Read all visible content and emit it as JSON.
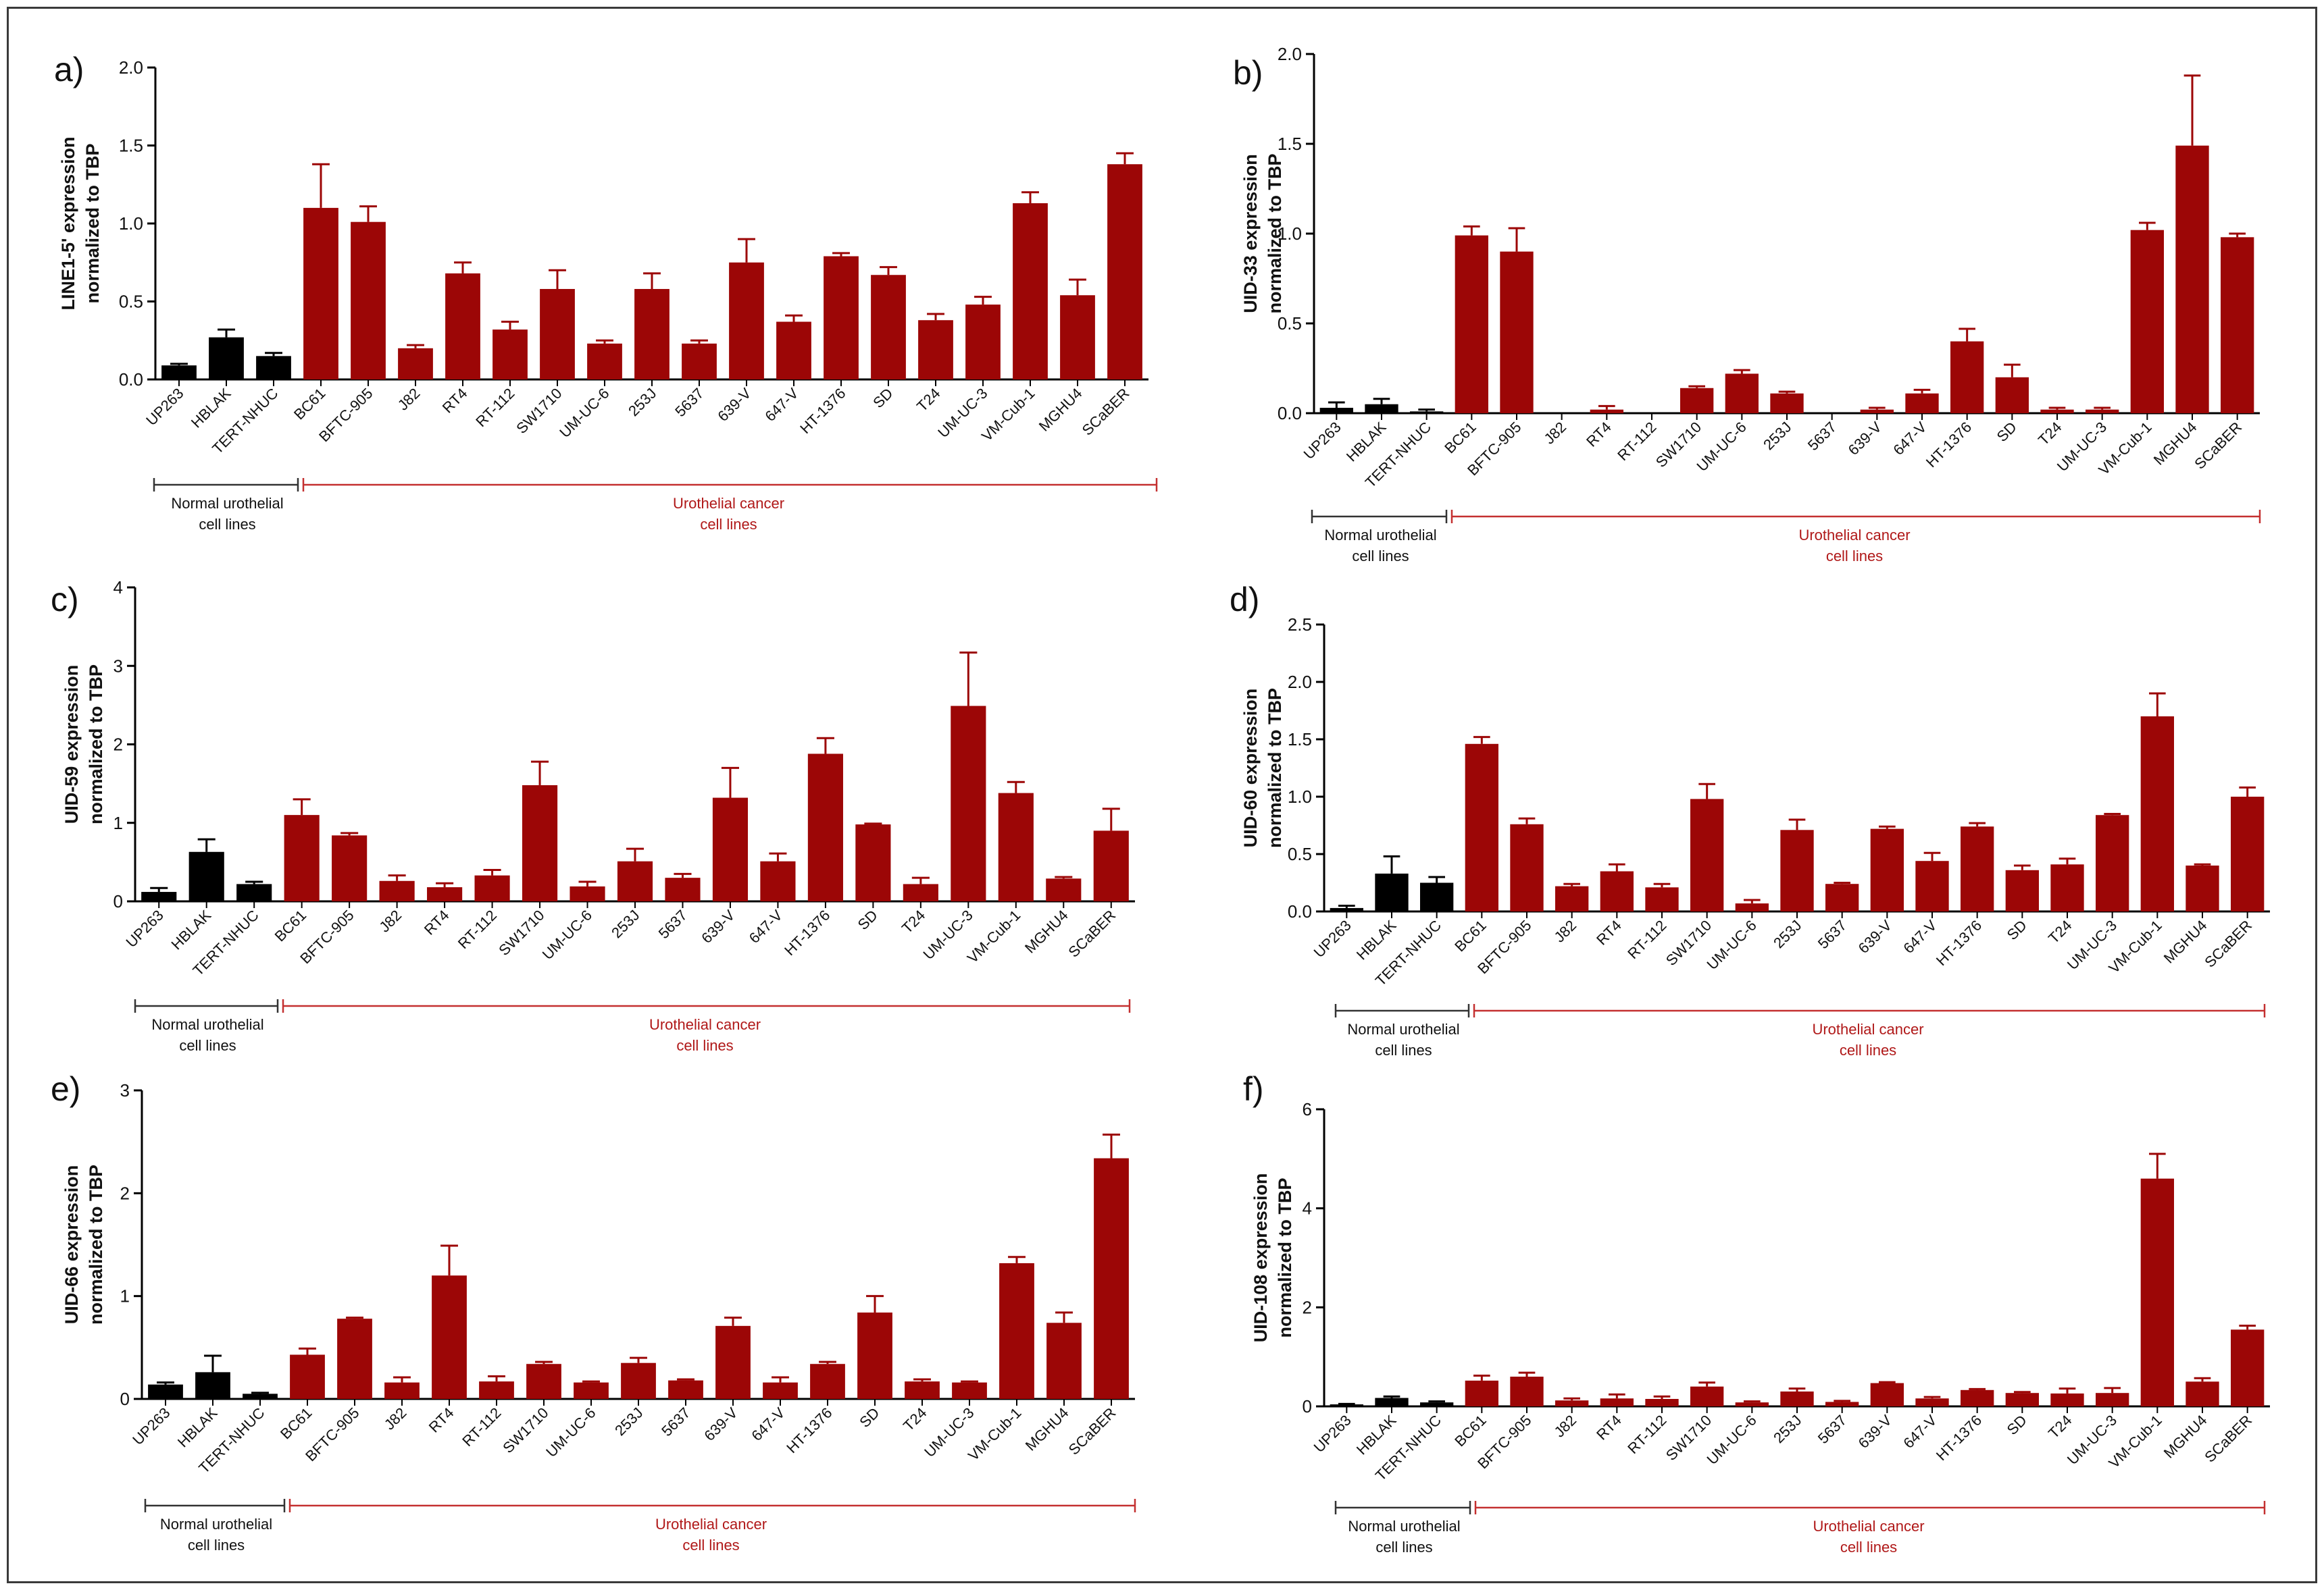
{
  "colors": {
    "normal": "#000000",
    "cancer": "#9c0606",
    "axis": "#000000",
    "cancer_bracket": "#c43030",
    "normal_bracket": "#333333"
  },
  "groups": {
    "normal": {
      "line1": "Normal urothelial",
      "line2": "cell lines"
    },
    "cancer": {
      "line1": "Urothelial cancer",
      "line2": "cell lines"
    }
  },
  "chart_data": [
    {
      "type": "bar",
      "panel": "a)",
      "ylabel_line1": "LINE1-5' expression",
      "ylabel_line2": "normalized to TBP",
      "ylim": [
        0,
        2.0
      ],
      "yticks": [
        "0.0",
        "0.5",
        "1.0",
        "1.5",
        "2.0"
      ],
      "categories": [
        "UP263",
        "HBLAK",
        "TERT-NHUC",
        "BC61",
        "BFTC-905",
        "J82",
        "RT4",
        "RT-112",
        "SW1710",
        "UM-UC-6",
        "253J",
        "5637",
        "639-V",
        "647-V",
        "HT-1376",
        "SD",
        "T24",
        "UM-UC-3",
        "VM-Cub-1",
        "MGHU4",
        "SCaBER"
      ],
      "values": [
        0.09,
        0.27,
        0.15,
        1.1,
        1.01,
        0.2,
        0.68,
        0.32,
        0.58,
        0.23,
        0.58,
        0.23,
        0.75,
        0.37,
        0.79,
        0.67,
        0.38,
        0.48,
        1.13,
        0.54,
        1.38
      ],
      "errors": [
        0.01,
        0.05,
        0.02,
        0.28,
        0.1,
        0.02,
        0.07,
        0.05,
        0.12,
        0.02,
        0.1,
        0.02,
        0.15,
        0.04,
        0.02,
        0.05,
        0.04,
        0.05,
        0.07,
        0.1,
        0.07
      ]
    },
    {
      "type": "bar",
      "panel": "b)",
      "ylabel_line1": "UID-33 expression",
      "ylabel_line2": "normalized to TBP",
      "ylim": [
        0,
        2.0
      ],
      "yticks": [
        "0.0",
        "0.5",
        "1.0",
        "1.5",
        "2.0"
      ],
      "categories": [
        "UP263",
        "HBLAK",
        "TERT-NHUC",
        "BC61",
        "BFTC-905",
        "J82",
        "RT4",
        "RT-112",
        "SW1710",
        "UM-UC-6",
        "253J",
        "5637",
        "639-V",
        "647-V",
        "HT-1376",
        "SD",
        "T24",
        "UM-UC-3",
        "VM-Cub-1",
        "MGHU4",
        "SCaBER"
      ],
      "values": [
        0.03,
        0.05,
        0.01,
        0.99,
        0.9,
        0.0,
        0.02,
        0.0,
        0.14,
        0.22,
        0.11,
        0.0,
        0.02,
        0.11,
        0.4,
        0.2,
        0.02,
        0.02,
        1.02,
        1.49,
        0.98
      ],
      "errors": [
        0.03,
        0.03,
        0.01,
        0.05,
        0.13,
        0.0,
        0.02,
        0.0,
        0.01,
        0.02,
        0.01,
        0.0,
        0.01,
        0.02,
        0.07,
        0.07,
        0.01,
        0.01,
        0.04,
        0.39,
        0.02
      ]
    },
    {
      "type": "bar",
      "panel": "c)",
      "ylabel_line1": "UID-59 expression",
      "ylabel_line2": "normalized to TBP",
      "ylim": [
        0,
        4
      ],
      "yticks": [
        "0",
        "1",
        "2",
        "3",
        "4"
      ],
      "categories": [
        "UP263",
        "HBLAK",
        "TERT-NHUC",
        "BC61",
        "BFTC-905",
        "J82",
        "RT4",
        "RT-112",
        "SW1710",
        "UM-UC-6",
        "253J",
        "5637",
        "639-V",
        "647-V",
        "HT-1376",
        "SD",
        "T24",
        "UM-UC-3",
        "VM-Cub-1",
        "MGHU4",
        "SCaBER"
      ],
      "values": [
        0.12,
        0.63,
        0.22,
        1.1,
        0.84,
        0.26,
        0.18,
        0.33,
        1.48,
        0.19,
        0.51,
        0.3,
        1.32,
        0.51,
        1.88,
        0.98,
        0.22,
        2.49,
        1.38,
        0.29,
        0.9
      ],
      "errors": [
        0.05,
        0.16,
        0.03,
        0.2,
        0.03,
        0.07,
        0.05,
        0.07,
        0.3,
        0.06,
        0.16,
        0.05,
        0.38,
        0.1,
        0.2,
        0.01,
        0.08,
        0.68,
        0.14,
        0.02,
        0.28
      ]
    },
    {
      "type": "bar",
      "panel": "d)",
      "ylabel_line1": "UID-60 expression",
      "ylabel_line2": "normalized to TBP",
      "ylim": [
        0,
        2.5
      ],
      "yticks": [
        "0.0",
        "0.5",
        "1.0",
        "1.5",
        "2.0",
        "2.5"
      ],
      "categories": [
        "UP263",
        "HBLAK",
        "TERT-NHUC",
        "BC61",
        "BFTC-905",
        "J82",
        "RT4",
        "RT-112",
        "SW1710",
        "UM-UC-6",
        "253J",
        "5637",
        "639-V",
        "647-V",
        "HT-1376",
        "SD",
        "T24",
        "UM-UC-3",
        "VM-Cub-1",
        "MGHU4",
        "SCaBER"
      ],
      "values": [
        0.03,
        0.33,
        0.25,
        1.46,
        0.76,
        0.22,
        0.35,
        0.21,
        0.98,
        0.07,
        0.71,
        0.24,
        0.72,
        0.44,
        0.74,
        0.36,
        0.41,
        0.84,
        1.7,
        0.4,
        1.0
      ],
      "errors": [
        0.02,
        0.15,
        0.05,
        0.06,
        0.05,
        0.02,
        0.06,
        0.03,
        0.13,
        0.03,
        0.09,
        0.01,
        0.02,
        0.07,
        0.03,
        0.04,
        0.05,
        0.01,
        0.2,
        0.01,
        0.08
      ]
    },
    {
      "type": "bar",
      "panel": "e)",
      "ylabel_line1": "UID-66 expression",
      "ylabel_line2": "normalized to TBP",
      "ylim": [
        0,
        3
      ],
      "yticks": [
        "0",
        "1",
        "2",
        "3"
      ],
      "categories": [
        "UP263",
        "HBLAK",
        "TERT-NHUC",
        "BC61",
        "BFTC-905",
        "J82",
        "RT4",
        "RT-112",
        "SW1710",
        "UM-UC-6",
        "253J",
        "5637",
        "639-V",
        "647-V",
        "HT-1376",
        "SD",
        "T24",
        "UM-UC-3",
        "VM-Cub-1",
        "MGHU4",
        "SCaBER"
      ],
      "values": [
        0.14,
        0.26,
        0.05,
        0.43,
        0.78,
        0.16,
        1.2,
        0.17,
        0.34,
        0.16,
        0.35,
        0.18,
        0.71,
        0.16,
        0.34,
        0.84,
        0.17,
        0.16,
        1.32,
        0.74,
        2.34
      ],
      "errors": [
        0.02,
        0.16,
        0.01,
        0.06,
        0.01,
        0.05,
        0.29,
        0.05,
        0.02,
        0.01,
        0.05,
        0.01,
        0.08,
        0.05,
        0.02,
        0.16,
        0.02,
        0.01,
        0.06,
        0.1,
        0.23
      ]
    },
    {
      "type": "bar",
      "panel": "f)",
      "ylabel_line1": "UID-108 expression",
      "ylabel_line2": "normalized to TBP",
      "ylim": [
        0,
        6
      ],
      "yticks": [
        "0",
        "2",
        "4",
        "6"
      ],
      "categories": [
        "UP263",
        "HBLAK",
        "TERT-NHUC",
        "BC61",
        "BFTC-905",
        "J82",
        "RT4",
        "RT-112",
        "SW1710",
        "UM-UC-6",
        "253J",
        "5637",
        "639-V",
        "647-V",
        "HT-1376",
        "SD",
        "T24",
        "UM-UC-3",
        "VM-Cub-1",
        "MGHU4",
        "SCaBER"
      ],
      "values": [
        0.04,
        0.17,
        0.08,
        0.52,
        0.6,
        0.12,
        0.16,
        0.15,
        0.4,
        0.08,
        0.3,
        0.09,
        0.47,
        0.16,
        0.33,
        0.27,
        0.26,
        0.27,
        4.6,
        0.5,
        1.55
      ],
      "errors": [
        0.01,
        0.03,
        0.02,
        0.1,
        0.08,
        0.04,
        0.08,
        0.05,
        0.08,
        0.02,
        0.06,
        0.02,
        0.02,
        0.03,
        0.02,
        0.02,
        0.1,
        0.1,
        0.5,
        0.07,
        0.08
      ]
    }
  ]
}
